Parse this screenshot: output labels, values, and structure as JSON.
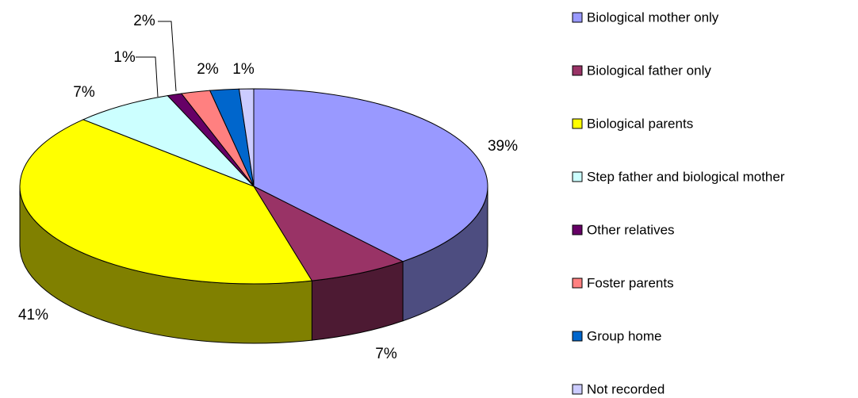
{
  "chart_data": {
    "type": "pie",
    "categories": [
      "Biological mother only",
      "Biological father only",
      "Biological parents",
      "Step father and biological mother",
      "Other relatives",
      "Foster parents",
      "Group home",
      "Not recorded"
    ],
    "values": [
      39,
      7,
      41,
      7,
      1,
      2,
      2,
      1
    ],
    "value_labels": [
      "39%",
      "7%",
      "41%",
      "7%",
      "1%",
      "2%",
      "2%",
      "1%"
    ],
    "colors": [
      "#9999ff",
      "#993366",
      "#ffff00",
      "#ccffff",
      "#660066",
      "#ff8080",
      "#0066cc",
      "#ccccff"
    ],
    "legend": "right"
  }
}
